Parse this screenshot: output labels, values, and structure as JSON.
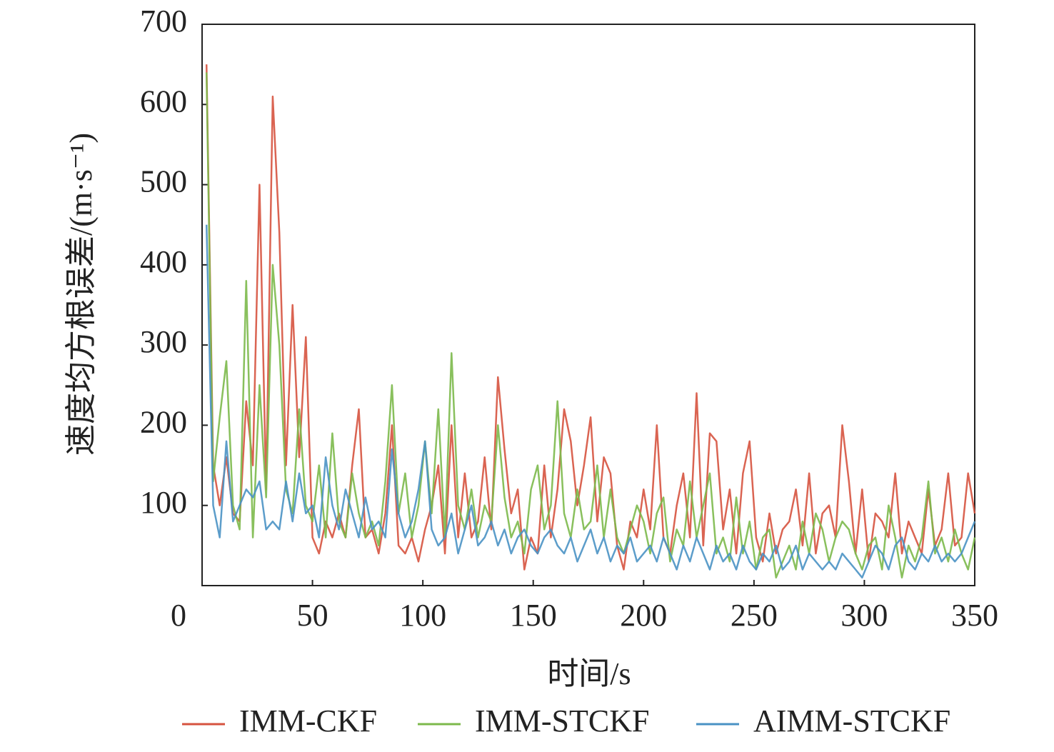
{
  "chart_data": {
    "type": "line",
    "xlabel": "时间/s",
    "ylabel": "速度均方根误差/(m·s⁻¹)",
    "xlim": [
      0,
      350
    ],
    "xticks": [
      0,
      50,
      100,
      150,
      200,
      250,
      300,
      350
    ],
    "ylim": [
      0,
      700
    ],
    "yticks": [
      100,
      200,
      300,
      400,
      500,
      600,
      700
    ],
    "grid": false,
    "legend": "bottom",
    "x": [
      2,
      5,
      8,
      11,
      14,
      17,
      20,
      23,
      26,
      29,
      32,
      35,
      38,
      41,
      44,
      47,
      50,
      53,
      56,
      59,
      62,
      65,
      68,
      71,
      74,
      77,
      80,
      83,
      86,
      89,
      92,
      95,
      98,
      101,
      104,
      107,
      110,
      113,
      116,
      119,
      122,
      125,
      128,
      131,
      134,
      137,
      140,
      143,
      146,
      149,
      152,
      155,
      158,
      161,
      164,
      167,
      170,
      173,
      176,
      179,
      182,
      185,
      188,
      191,
      194,
      197,
      200,
      203,
      206,
      209,
      212,
      215,
      218,
      221,
      224,
      227,
      230,
      233,
      236,
      239,
      242,
      245,
      248,
      251,
      254,
      257,
      260,
      263,
      266,
      269,
      272,
      275,
      278,
      281,
      284,
      287,
      290,
      293,
      296,
      299,
      302,
      305,
      308,
      311,
      314,
      317,
      320,
      323,
      326,
      329,
      332,
      335,
      338,
      341,
      344,
      347,
      350
    ],
    "series": [
      {
        "name": "IMM-CKF",
        "color": "#d6533f",
        "values": [
          650,
          150,
          100,
          160,
          90,
          80,
          230,
          150,
          500,
          120,
          610,
          440,
          150,
          350,
          160,
          310,
          60,
          40,
          80,
          60,
          90,
          60,
          150,
          220,
          60,
          70,
          40,
          90,
          200,
          50,
          40,
          60,
          30,
          70,
          100,
          150,
          40,
          200,
          60,
          140,
          60,
          80,
          160,
          70,
          260,
          170,
          90,
          120,
          20,
          60,
          40,
          150,
          60,
          120,
          220,
          180,
          100,
          150,
          210,
          80,
          160,
          140,
          50,
          20,
          80,
          60,
          120,
          70,
          200,
          60,
          40,
          100,
          140,
          60,
          240,
          50,
          190,
          180,
          70,
          120,
          40,
          140,
          180,
          60,
          30,
          90,
          40,
          70,
          80,
          120,
          50,
          140,
          40,
          90,
          100,
          60,
          200,
          130,
          40,
          120,
          30,
          90,
          80,
          60,
          140,
          40,
          80,
          60,
          40,
          120,
          50,
          70,
          140,
          50,
          60,
          140,
          90
        ]
      },
      {
        "name": "IMM-STCKF",
        "color": "#7cb94b",
        "values": [
          640,
          130,
          210,
          280,
          100,
          70,
          380,
          60,
          250,
          110,
          400,
          300,
          120,
          90,
          220,
          100,
          80,
          150,
          60,
          190,
          80,
          60,
          140,
          90,
          60,
          80,
          50,
          130,
          250,
          90,
          140,
          60,
          100,
          180,
          90,
          220,
          60,
          290,
          100,
          70,
          120,
          60,
          100,
          80,
          200,
          110,
          60,
          80,
          40,
          120,
          150,
          70,
          100,
          230,
          90,
          60,
          120,
          70,
          80,
          150,
          60,
          120,
          60,
          40,
          70,
          100,
          80,
          40,
          90,
          110,
          30,
          70,
          50,
          130,
          60,
          100,
          140,
          40,
          60,
          30,
          110,
          40,
          80,
          20,
          60,
          70,
          10,
          30,
          50,
          20,
          80,
          40,
          90,
          70,
          30,
          60,
          80,
          70,
          40,
          20,
          50,
          60,
          20,
          100,
          60,
          10,
          50,
          30,
          60,
          130,
          40,
          60,
          30,
          70,
          40,
          20,
          60
        ]
      },
      {
        "name": "AIMM-STCKF",
        "color": "#4a92c4",
        "values": [
          450,
          100,
          60,
          180,
          80,
          100,
          120,
          110,
          130,
          70,
          80,
          70,
          130,
          80,
          140,
          90,
          100,
          60,
          160,
          100,
          70,
          120,
          90,
          60,
          110,
          70,
          80,
          60,
          170,
          90,
          60,
          80,
          120,
          180,
          70,
          50,
          60,
          90,
          40,
          70,
          100,
          50,
          60,
          80,
          50,
          70,
          40,
          60,
          70,
          50,
          40,
          60,
          70,
          50,
          40,
          60,
          30,
          50,
          70,
          40,
          60,
          30,
          50,
          40,
          60,
          30,
          40,
          50,
          30,
          60,
          40,
          20,
          50,
          30,
          60,
          40,
          20,
          50,
          30,
          40,
          20,
          50,
          30,
          20,
          40,
          30,
          50,
          20,
          30,
          50,
          20,
          40,
          30,
          20,
          30,
          20,
          40,
          30,
          20,
          10,
          30,
          50,
          40,
          20,
          50,
          60,
          30,
          20,
          40,
          30,
          50,
          30,
          40,
          30,
          40,
          60,
          80
        ]
      }
    ]
  }
}
